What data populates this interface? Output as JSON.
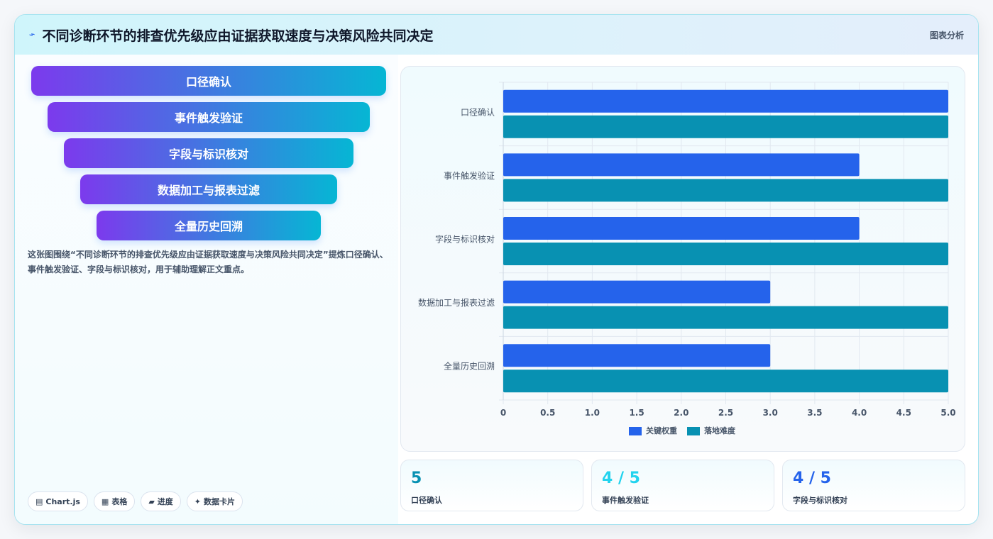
{
  "header": {
    "title": "不同诊断环节的排查优先级应由证据获取速度与决策风险共同决定",
    "icon": "chart-line-icon",
    "tag": "图表分析"
  },
  "funnel": {
    "steps": [
      "口径确认",
      "事件触发验证",
      "字段与标识核对",
      "数据加工与报表过滤",
      "全量历史回溯"
    ]
  },
  "description": "这张图围绕“不同诊断环节的排查优先级应由证据获取速度与决策风险共同决定”提炼口径确认、事件触发验证、字段与标识核对，用于辅助理解正文重点。",
  "chips": [
    {
      "icon": "▤",
      "label": "Chart.js"
    },
    {
      "icon": "▦",
      "label": "表格"
    },
    {
      "icon": "▰",
      "label": "进度"
    },
    {
      "icon": "✦",
      "label": "数据卡片"
    }
  ],
  "chart_data": {
    "type": "bar",
    "orientation": "horizontal",
    "categories": [
      "口径确认",
      "事件触发验证",
      "字段与标识核对",
      "数据加工与报表过滤",
      "全量历史回溯"
    ],
    "series": [
      {
        "name": "关键权重",
        "values": [
          5,
          4,
          4,
          3,
          3
        ],
        "color": "#2563eb"
      },
      {
        "name": "落地难度",
        "values": [
          5,
          5,
          5,
          5,
          5
        ],
        "color": "#0891b2"
      }
    ],
    "xlim": [
      0,
      5
    ],
    "xticks": [
      "0",
      "0.5",
      "1.0",
      "1.5",
      "2.0",
      "2.5",
      "3.0",
      "3.5",
      "4.0",
      "4.5",
      "5.0"
    ],
    "grid": true,
    "legend": "bottom"
  },
  "stats": [
    {
      "value": "5",
      "label": "口径确认",
      "color": "#0891b2"
    },
    {
      "value": "4 / 5",
      "label": "事件触发验证",
      "color": "#22d3ee"
    },
    {
      "value": "4 / 5",
      "label": "字段与标识核对",
      "color": "#2563eb"
    }
  ]
}
